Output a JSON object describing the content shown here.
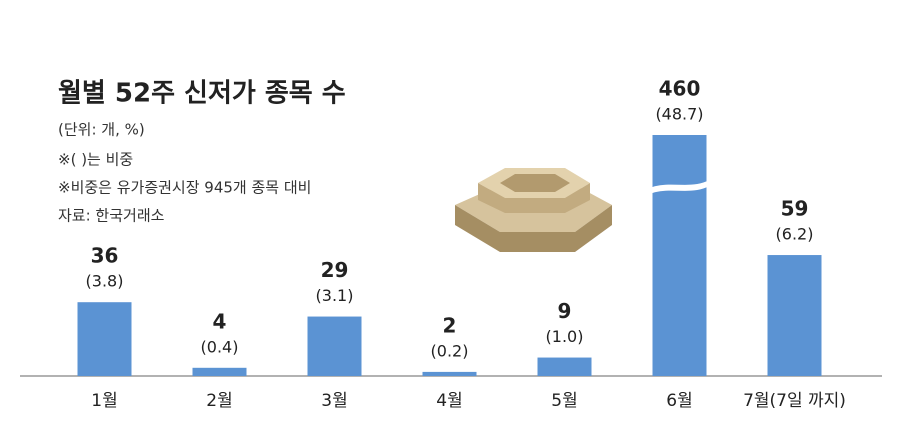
{
  "chart_data": {
    "type": "bar",
    "title": "월별 52주 신저가 종목 수",
    "subtitle": "(단위: 개, %)",
    "notes": [
      "※(  )는 비중",
      "※비중은 유가증권시장 945개 종목 대비"
    ],
    "source": "자료: 한국거래소",
    "categories": [
      "1월",
      "2월",
      "3월",
      "4월",
      "5월",
      "6월",
      "7월(7일 까지)"
    ],
    "values": [
      36,
      4,
      29,
      2,
      9,
      460,
      59
    ],
    "shares": [
      {
        "value": 3.8,
        "label": "(3.8)"
      },
      {
        "value": 0.4,
        "label": "(0.4)"
      },
      {
        "value": 3.1,
        "label": "(3.1)"
      },
      {
        "value": 0.2,
        "label": "(0.2)"
      },
      {
        "value": 1.0,
        "label": "(1.0)"
      },
      {
        "value": 48.7,
        "label": "(48.7)"
      },
      {
        "value": 6.2,
        "label": "(6.2)"
      }
    ],
    "color": "#5b93d3"
  }
}
